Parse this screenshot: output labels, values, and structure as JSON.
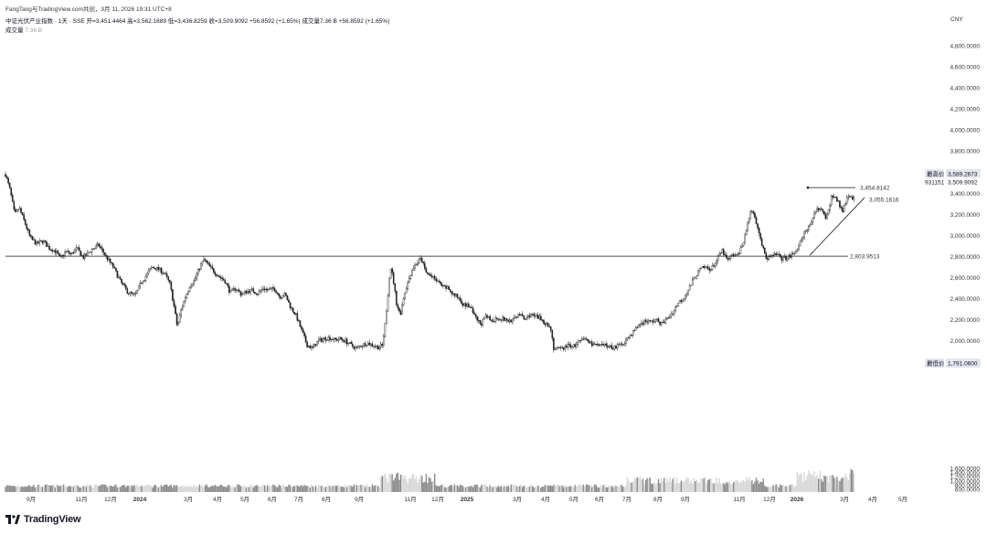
{
  "header": {
    "shared_by": "FangTang与TradingView.com共创，3月 11, 2026 19:31 UTC+8",
    "symbol": "中证光伏产业指数 · 1天 · SSE",
    "ohlc": "开=3,451.4464 高=3,562.1689 低=3,436.8259 收=3,509.9092 +56.8592 (+1.65%) 成交量7.36 B +56.8592 (+1.65%)",
    "volume_label": "成交量",
    "volume_value": "7.36 B"
  },
  "currency": "CNY",
  "logo_text": "TradingView",
  "logo_icon": "tradingview-logo-icon",
  "colors": {
    "up": "#ffffff",
    "down": "#1e1e1e",
    "line": "#131722",
    "volume": "#a8a8a8",
    "badge_bg": "#e3e6ef"
  },
  "chart_data": {
    "type": "candlestick",
    "x_ticks": [
      "9月",
      "11月",
      "12月",
      "2024",
      "3月",
      "4月",
      "5月",
      "6月",
      "7月",
      "8月",
      "9月",
      "11月",
      "12月",
      "2025",
      "3月",
      "4月",
      "5月",
      "6月",
      "7月",
      "8月",
      "9月",
      "11月",
      "12月",
      "2026",
      "3月",
      "4月",
      "5月"
    ],
    "price_axis": {
      "ticks": [
        "4,800.0000",
        "4,600.0000",
        "4,400.0000",
        "4,200.0000",
        "4,000.0000",
        "3,800.0000",
        "3,400.0000",
        "3,200.0000",
        "3,000.0000",
        "2,800.0000",
        "2,600.0000",
        "2,400.0000",
        "2,200.0000",
        "2,000.0000"
      ],
      "tick_values": [
        4800,
        4600,
        4400,
        4200,
        4000,
        3800,
        3400,
        3200,
        3000,
        2800,
        2600,
        2400,
        2200,
        2000
      ]
    },
    "volume_axis": {
      "ticks": [
        "1,600.0000",
        "1,400.0000",
        "1,200.0000",
        "1,000.0000",
        "800.0000",
        "600.0000"
      ],
      "tick_values": [
        1600,
        1400,
        1200,
        1000,
        800,
        600
      ]
    },
    "badges": {
      "high_label": "最高价",
      "high_value": "3,589.2673",
      "last_value": "3,509.9092",
      "countdown": "931151",
      "low_label": "最低价",
      "low_value": "1,791.0600"
    },
    "annotations": {
      "support_line": 2803.9513,
      "support_label": "2,803.9513",
      "triangle_top": 3454.8142,
      "triangle_top_label": "3,454.8142",
      "triangle_bottom_label": "3,055.1616"
    },
    "price_path": [
      [
        0,
        3580
      ],
      [
        5,
        3430
      ],
      [
        10,
        3200
      ],
      [
        15,
        3260
      ],
      [
        20,
        3150
      ],
      [
        27,
        2980
      ],
      [
        34,
        2920
      ],
      [
        41,
        2950
      ],
      [
        48,
        2880
      ],
      [
        55,
        2850
      ],
      [
        60,
        2780
      ],
      [
        66,
        2850
      ],
      [
        72,
        2820
      ],
      [
        78,
        2880
      ],
      [
        85,
        2790
      ],
      [
        95,
        2870
      ],
      [
        102,
        2910
      ],
      [
        110,
        2800
      ],
      [
        118,
        2700
      ],
      [
        126,
        2560
      ],
      [
        134,
        2460
      ],
      [
        142,
        2430
      ],
      [
        148,
        2550
      ],
      [
        154,
        2620
      ],
      [
        160,
        2700
      ],
      [
        168,
        2680
      ],
      [
        174,
        2640
      ],
      [
        180,
        2540
      ],
      [
        185,
        2300
      ],
      [
        188,
        2130
      ],
      [
        192,
        2290
      ],
      [
        197,
        2420
      ],
      [
        202,
        2530
      ],
      [
        207,
        2580
      ],
      [
        212,
        2690
      ],
      [
        217,
        2770
      ],
      [
        222,
        2720
      ],
      [
        228,
        2660
      ],
      [
        234,
        2610
      ],
      [
        240,
        2570
      ],
      [
        246,
        2460
      ],
      [
        252,
        2500
      ],
      [
        258,
        2440
      ],
      [
        264,
        2470
      ],
      [
        270,
        2480
      ],
      [
        276,
        2450
      ],
      [
        282,
        2500
      ],
      [
        288,
        2480
      ],
      [
        294,
        2500
      ],
      [
        300,
        2420
      ],
      [
        306,
        2440
      ],
      [
        312,
        2320
      ],
      [
        318,
        2240
      ],
      [
        324,
        2100
      ],
      [
        330,
        1960
      ],
      [
        336,
        1930
      ],
      [
        342,
        2000
      ],
      [
        348,
        2020
      ],
      [
        354,
        2030
      ],
      [
        360,
        2010
      ],
      [
        366,
        2020
      ],
      [
        372,
        2000
      ],
      [
        378,
        1960
      ],
      [
        384,
        1930
      ],
      [
        390,
        1960
      ],
      [
        396,
        1980
      ],
      [
        402,
        1960
      ],
      [
        408,
        1940
      ],
      [
        413,
        1960
      ],
      [
        416,
        2200
      ],
      [
        419,
        2500
      ],
      [
        421,
        2720
      ],
      [
        424,
        2600
      ],
      [
        428,
        2350
      ],
      [
        432,
        2250
      ],
      [
        436,
        2430
      ],
      [
        440,
        2550
      ],
      [
        445,
        2680
      ],
      [
        450,
        2740
      ],
      [
        455,
        2780
      ],
      [
        460,
        2650
      ],
      [
        466,
        2610
      ],
      [
        472,
        2570
      ],
      [
        478,
        2510
      ],
      [
        484,
        2500
      ],
      [
        490,
        2440
      ],
      [
        496,
        2410
      ],
      [
        502,
        2340
      ],
      [
        508,
        2330
      ],
      [
        514,
        2220
      ],
      [
        520,
        2160
      ],
      [
        526,
        2230
      ],
      [
        532,
        2190
      ],
      [
        538,
        2220
      ],
      [
        544,
        2210
      ],
      [
        550,
        2190
      ],
      [
        556,
        2200
      ],
      [
        562,
        2260
      ],
      [
        568,
        2200
      ],
      [
        574,
        2250
      ],
      [
        580,
        2230
      ],
      [
        586,
        2210
      ],
      [
        592,
        2160
      ],
      [
        597,
        2110
      ],
      [
        600,
        1920
      ],
      [
        604,
        1920
      ],
      [
        610,
        1930
      ],
      [
        616,
        1960
      ],
      [
        622,
        1950
      ],
      [
        628,
        1990
      ],
      [
        634,
        2020
      ],
      [
        640,
        1980
      ],
      [
        646,
        1960
      ],
      [
        652,
        1950
      ],
      [
        658,
        1960
      ],
      [
        664,
        1940
      ],
      [
        670,
        1950
      ],
      [
        676,
        1980
      ],
      [
        682,
        2040
      ],
      [
        688,
        2100
      ],
      [
        694,
        2160
      ],
      [
        700,
        2190
      ],
      [
        706,
        2180
      ],
      [
        712,
        2200
      ],
      [
        718,
        2160
      ],
      [
        724,
        2210
      ],
      [
        730,
        2270
      ],
      [
        736,
        2360
      ],
      [
        742,
        2410
      ],
      [
        748,
        2500
      ],
      [
        754,
        2600
      ],
      [
        760,
        2680
      ],
      [
        766,
        2700
      ],
      [
        772,
        2680
      ],
      [
        778,
        2760
      ],
      [
        784,
        2860
      ],
      [
        790,
        2760
      ],
      [
        796,
        2820
      ],
      [
        800,
        2800
      ],
      [
        806,
        2900
      ],
      [
        812,
        3100
      ],
      [
        816,
        3250
      ],
      [
        820,
        3180
      ],
      [
        824,
        3050
      ],
      [
        828,
        2900
      ],
      [
        832,
        2780
      ],
      [
        838,
        2800
      ],
      [
        844,
        2820
      ],
      [
        850,
        2780
      ],
      [
        856,
        2790
      ],
      [
        862,
        2820
      ],
      [
        868,
        2900
      ],
      [
        874,
        3020
      ],
      [
        880,
        3080
      ],
      [
        886,
        3250
      ],
      [
        892,
        3260
      ],
      [
        898,
        3150
      ],
      [
        904,
        3380
      ],
      [
        910,
        3330
      ],
      [
        916,
        3240
      ],
      [
        922,
        3390
      ],
      [
        928,
        3350
      ],
      [
        932,
        3440
      ],
      [
        935,
        3509
      ]
    ]
  }
}
